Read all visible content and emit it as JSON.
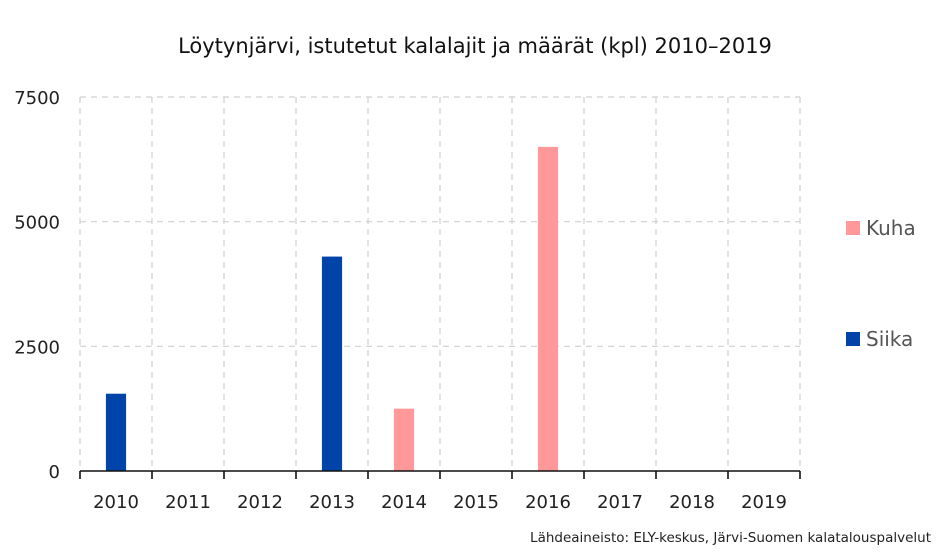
{
  "chart_data": {
    "type": "bar",
    "title": "Löytynjärvi, istutetut kalalajit ja määrät (kpl) 2010–2019",
    "categories": [
      "2010",
      "2011",
      "2012",
      "2013",
      "2014",
      "2015",
      "2016",
      "2017",
      "2018",
      "2019"
    ],
    "series": [
      {
        "name": "Siika",
        "color": "#0044aa",
        "values": [
          1550,
          0,
          0,
          4300,
          0,
          0,
          0,
          0,
          0,
          0
        ]
      },
      {
        "name": "Kuha",
        "color": "#ff9999",
        "values": [
          0,
          0,
          0,
          0,
          1250,
          0,
          6500,
          0,
          0,
          0
        ]
      }
    ],
    "ylim": [
      0,
      7500
    ],
    "yticks": [
      0,
      2500,
      5000,
      7500
    ],
    "xlabel": "",
    "ylabel": "",
    "grid": true,
    "legend_order": [
      "Kuha",
      "Siika"
    ],
    "legend_position": "right",
    "source": "Lähdeaineisto: ELY-keskus, Järvi-Suomen kalatalouspalvelut"
  }
}
